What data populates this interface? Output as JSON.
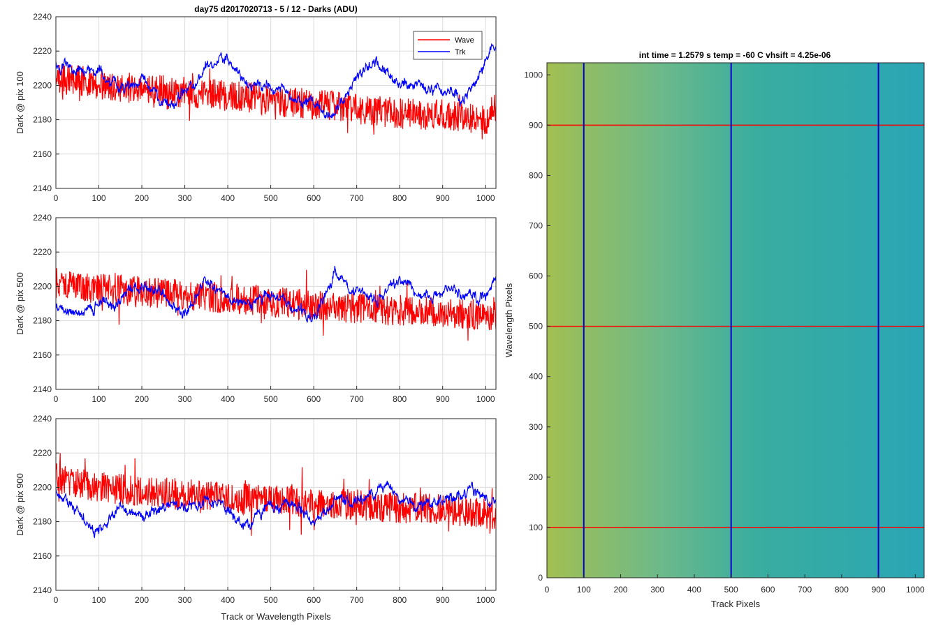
{
  "figure_title": "day75 d2017020713 - 5 / 12 - Darks (ADU)",
  "colors": {
    "wave": "#ff0000",
    "trk": "#0000ff",
    "grid": "#dcdcdc"
  },
  "chart_data": [
    {
      "type": "line",
      "title": "day75 d2017020713 - 5 / 12 - Darks (ADU)",
      "ylabel": "Dark @ pix 100",
      "xlabel": "",
      "xlim": [
        0,
        1024
      ],
      "ylim": [
        2140,
        2240
      ],
      "xticks": [
        0,
        100,
        200,
        300,
        400,
        500,
        600,
        700,
        800,
        900,
        1000
      ],
      "yticks": [
        2140,
        2160,
        2180,
        2200,
        2220,
        2240
      ],
      "grid": true,
      "legend": {
        "placement": "top-right",
        "entries": [
          "Wave",
          "Trk"
        ]
      },
      "series": [
        {
          "name": "Wave",
          "color": "#ff0000",
          "x": [
            0,
            50,
            100,
            150,
            200,
            250,
            300,
            350,
            400,
            450,
            500,
            550,
            600,
            650,
            700,
            750,
            800,
            850,
            900,
            950,
            1000,
            1024
          ],
          "values": [
            2204,
            2203,
            2200,
            2199,
            2198,
            2197,
            2196,
            2195,
            2194,
            2193,
            2191,
            2190,
            2189,
            2188,
            2186,
            2185,
            2184,
            2183,
            2183,
            2182,
            2180,
            2179
          ]
        },
        {
          "name": "Trk",
          "color": "#0000ff",
          "x": [
            0,
            50,
            100,
            150,
            200,
            250,
            300,
            350,
            400,
            450,
            500,
            550,
            600,
            650,
            700,
            750,
            800,
            850,
            900,
            950,
            1000,
            1024
          ],
          "values": [
            2212,
            2207,
            2209,
            2197,
            2203,
            2188,
            2196,
            2211,
            2214,
            2198,
            2201,
            2192,
            2187,
            2183,
            2207,
            2213,
            2201,
            2199,
            2196,
            2193,
            2211,
            2225
          ]
        }
      ]
    },
    {
      "type": "line",
      "title": "",
      "ylabel": "Dark @ pix 500",
      "xlabel": "",
      "xlim": [
        0,
        1024
      ],
      "ylim": [
        2140,
        2240
      ],
      "xticks": [
        0,
        100,
        200,
        300,
        400,
        500,
        600,
        700,
        800,
        900,
        1000
      ],
      "yticks": [
        2140,
        2160,
        2180,
        2200,
        2220,
        2240
      ],
      "grid": true,
      "series": [
        {
          "name": "Wave",
          "color": "#ff0000",
          "x": [
            0,
            50,
            100,
            150,
            200,
            250,
            300,
            350,
            400,
            450,
            500,
            550,
            600,
            650,
            700,
            750,
            800,
            850,
            900,
            950,
            1000,
            1024
          ],
          "values": [
            2202,
            2200,
            2199,
            2198,
            2197,
            2196,
            2195,
            2194,
            2193,
            2192,
            2191,
            2190,
            2189,
            2188,
            2187,
            2187,
            2186,
            2186,
            2185,
            2184,
            2183,
            2183
          ]
        },
        {
          "name": "Trk",
          "color": "#0000ff",
          "x": [
            0,
            50,
            100,
            150,
            200,
            250,
            300,
            350,
            400,
            450,
            500,
            550,
            600,
            650,
            700,
            750,
            800,
            850,
            900,
            950,
            1000,
            1024
          ],
          "values": [
            2190,
            2183,
            2192,
            2191,
            2199,
            2196,
            2182,
            2205,
            2193,
            2190,
            2196,
            2187,
            2183,
            2208,
            2196,
            2191,
            2203,
            2194,
            2198,
            2195,
            2194,
            2205
          ]
        }
      ]
    },
    {
      "type": "line",
      "title": "",
      "ylabel": "Dark @ pix 900",
      "xlabel": "Track or Wavelength Pixels",
      "xlim": [
        0,
        1024
      ],
      "ylim": [
        2140,
        2240
      ],
      "xticks": [
        0,
        100,
        200,
        300,
        400,
        500,
        600,
        700,
        800,
        900,
        1000
      ],
      "yticks": [
        2140,
        2160,
        2180,
        2200,
        2220,
        2240
      ],
      "grid": true,
      "series": [
        {
          "name": "Wave",
          "color": "#ff0000",
          "x": [
            0,
            50,
            100,
            150,
            200,
            250,
            300,
            350,
            400,
            450,
            500,
            550,
            600,
            650,
            700,
            750,
            800,
            850,
            900,
            950,
            1000,
            1024
          ],
          "values": [
            2205,
            2202,
            2200,
            2199,
            2198,
            2197,
            2196,
            2195,
            2194,
            2193,
            2193,
            2192,
            2191,
            2190,
            2190,
            2189,
            2188,
            2188,
            2187,
            2186,
            2185,
            2184
          ]
        },
        {
          "name": "Trk",
          "color": "#0000ff",
          "x": [
            0,
            50,
            100,
            150,
            200,
            250,
            300,
            350,
            400,
            450,
            500,
            550,
            600,
            650,
            700,
            750,
            800,
            850,
            900,
            950,
            1000,
            1024
          ],
          "values": [
            2200,
            2186,
            2175,
            2187,
            2183,
            2187,
            2188,
            2194,
            2186,
            2180,
            2190,
            2188,
            2180,
            2192,
            2190,
            2200,
            2193,
            2189,
            2192,
            2197,
            2194,
            2188
          ]
        }
      ]
    },
    {
      "type": "heatmap",
      "title": "int time = 1.2579 s    temp = -60 C    vhsift = 4.25e-06",
      "xlabel": "Track Pixels",
      "ylabel": "Wavelength Pixels",
      "xlim": [
        0,
        1024
      ],
      "ylim": [
        0,
        1024
      ],
      "xticks": [
        0,
        100,
        200,
        300,
        400,
        500,
        600,
        700,
        800,
        900,
        1000
      ],
      "yticks": [
        0,
        100,
        200,
        300,
        400,
        500,
        600,
        700,
        800,
        900,
        1000
      ],
      "colormap": "parula",
      "horizontal_lines": [
        100,
        500,
        900
      ],
      "vertical_lines": [
        100,
        500,
        900
      ],
      "hline_color": "#ff0000",
      "vline_color": "#0000cc"
    }
  ]
}
